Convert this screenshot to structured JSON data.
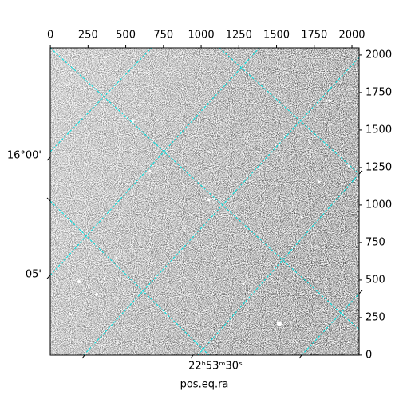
{
  "chart_data": {
    "type": "image",
    "xlabel": "pos.eq.ra",
    "xlim": [
      -0.5,
      2047.5
    ],
    "xticks": [
      0,
      250,
      500,
      750,
      1000,
      1250,
      1500,
      1750,
      2000
    ],
    "ylim": [
      -0.5,
      2047.5
    ],
    "yticks": [
      0,
      250,
      500,
      750,
      1000,
      1250,
      1500,
      1750,
      2000
    ],
    "world_yticks": [
      "16°00'",
      "05'"
    ],
    "world_xticks": [
      "22ʰ53ᵐ30ˢ"
    ],
    "grid_color": "#00e5e5"
  }
}
